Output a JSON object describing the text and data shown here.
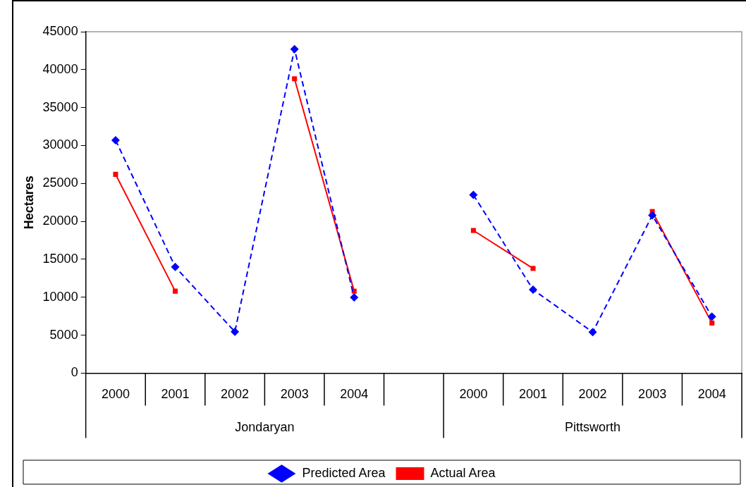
{
  "chart_data": {
    "type": "line",
    "ylabel": "Hectares",
    "categories": [
      "2000",
      "2001",
      "2002",
      "2003",
      "2004",
      null,
      "2000",
      "2001",
      "2002",
      "2003",
      "2004"
    ],
    "annotations": [
      "Jondaryan",
      "Pittsworth"
    ],
    "series": [
      {
        "name": "Predicted Area",
        "color": "#0000ff",
        "marker": "diamond",
        "line_style": "dashed",
        "values": [
          30700,
          14000,
          5450,
          42700,
          9970,
          null,
          23500,
          11000,
          5400,
          20800,
          7450
        ]
      },
      {
        "name": "Actual Area",
        "color": "#ff0000",
        "marker": "square",
        "line_style": "solid",
        "values": [
          26200,
          10800,
          null,
          38800,
          10800,
          null,
          18800,
          13800,
          null,
          21300,
          6600
        ]
      }
    ],
    "ylim": [
      0,
      45000
    ],
    "yticks": [
      0,
      5000,
      10000,
      15000,
      20000,
      25000,
      30000,
      35000,
      40000,
      45000
    ],
    "grid": false,
    "legend": "bottom"
  }
}
